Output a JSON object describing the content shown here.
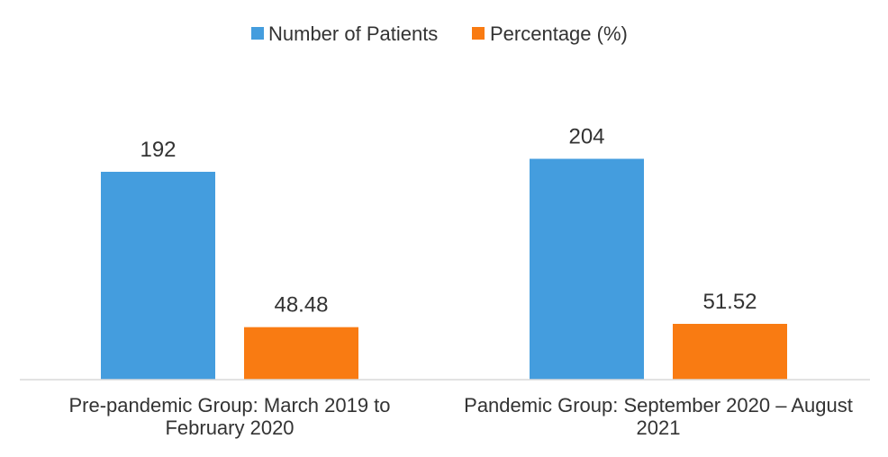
{
  "chart_data": {
    "type": "bar",
    "categories": [
      [
        "Pre-pandemic Group: March 2019 to",
        "February 2020"
      ],
      [
        "Pandemic Group: September 2020 – August",
        "2021"
      ]
    ],
    "series": [
      {
        "name": "Number of Patients",
        "color": "#449dde",
        "values": [
          192,
          204
        ],
        "labels": [
          "192",
          "204"
        ]
      },
      {
        "name": "Percentage (%)",
        "color": "#f97b12",
        "values": [
          48.48,
          51.52
        ],
        "labels": [
          "48.48",
          "51.52"
        ]
      }
    ],
    "legend_position": "top",
    "grid": false,
    "ylim": [
      0,
      241
    ]
  }
}
